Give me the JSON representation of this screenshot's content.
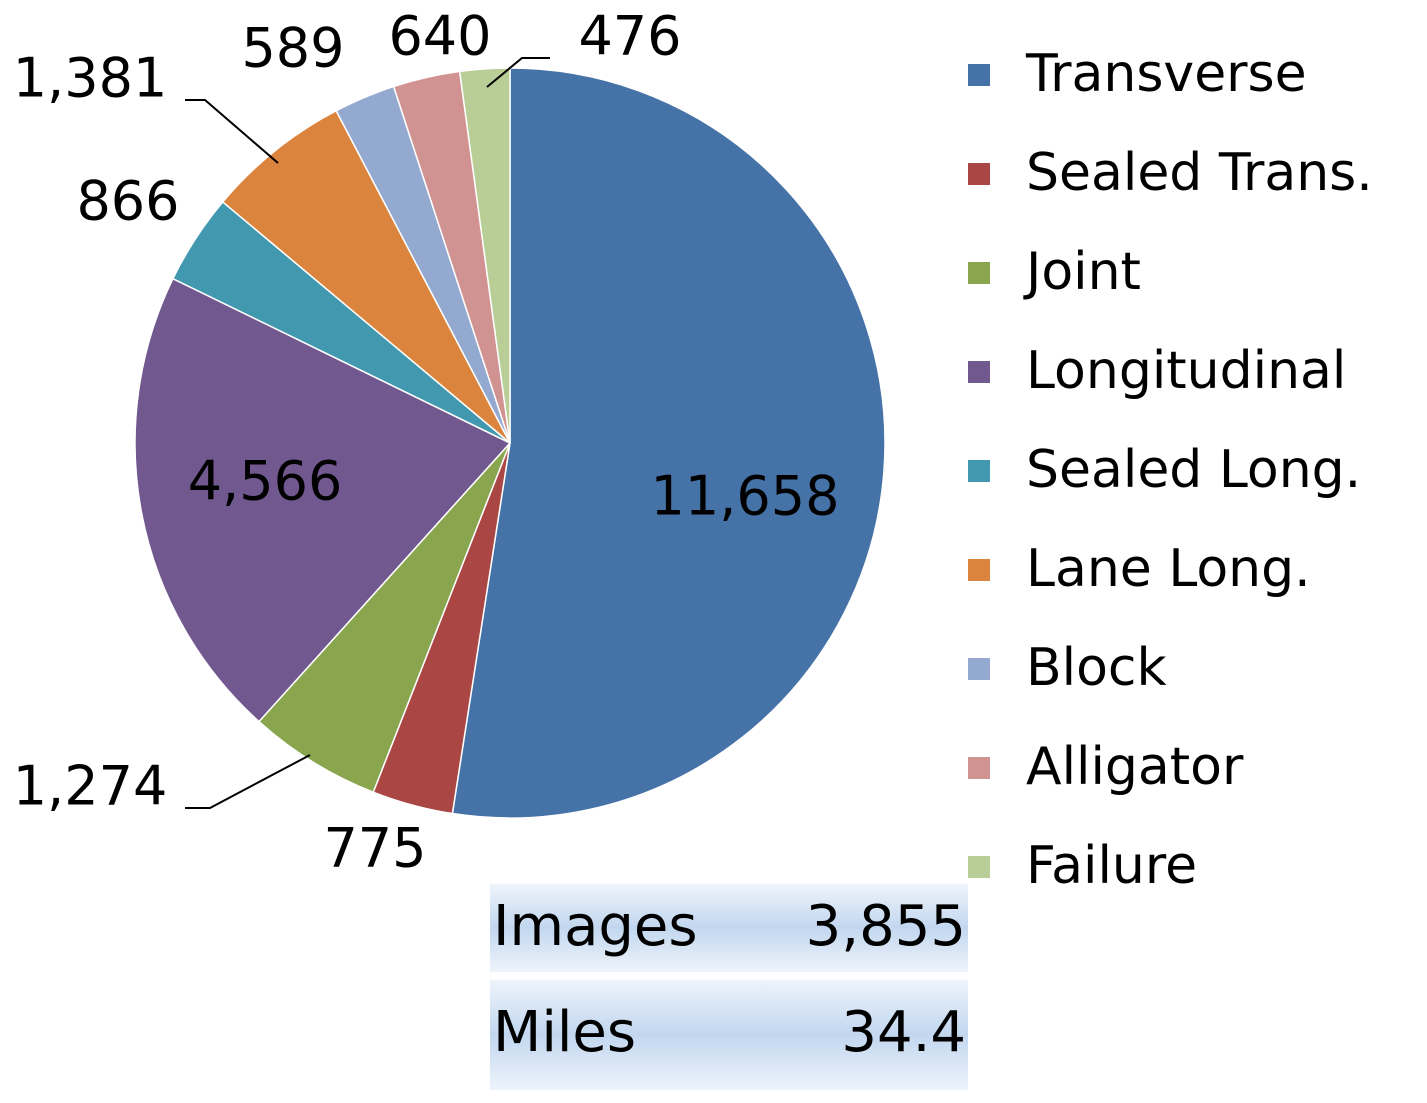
{
  "chart_data": {
    "type": "pie",
    "categories": [
      "Transverse",
      "Sealed Trans.",
      "Joint",
      "Longitudinal",
      "Sealed Long.",
      "Lane Long.",
      "Block",
      "Alligator",
      "Failure"
    ],
    "values": [
      11658,
      775,
      1274,
      4566,
      866,
      1381,
      589,
      640,
      476
    ],
    "value_labels": [
      "11,658",
      "775",
      "1,274",
      "4,566",
      "866",
      "1,381",
      "589",
      "640",
      "476"
    ],
    "colors": [
      "#4572a7",
      "#aa4643",
      "#89a54e",
      "#71588f",
      "#4198af",
      "#db843d",
      "#93a9cf",
      "#d19392",
      "#b9cd96"
    ],
    "legend": "right"
  },
  "table": {
    "rows": [
      [
        "Images",
        "3,855"
      ],
      [
        "Miles",
        "34.4"
      ]
    ]
  }
}
